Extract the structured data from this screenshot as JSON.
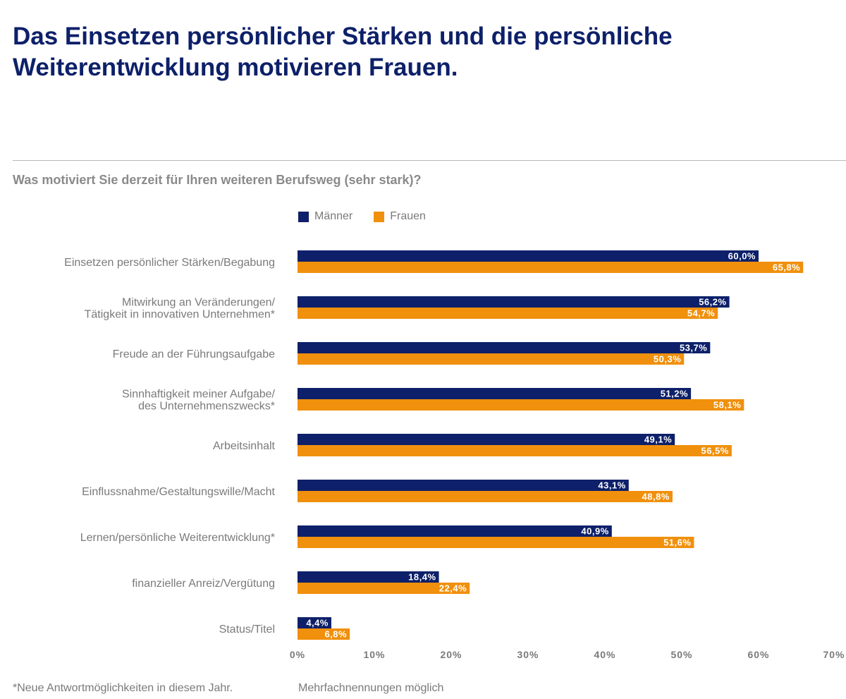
{
  "title": "Das Einsetzen persönlicher Stärken und die persönliche Weiterentwicklung motivieren Frauen.",
  "colors": {
    "maenner": "#0d2069",
    "frauen": "#f0900c",
    "label": "#7a7a7a"
  },
  "chart_data": {
    "type": "bar",
    "orientation": "horizontal",
    "title": "Was motiviert Sie derzeit für Ihren weiteren Berufsweg (sehr stark)?",
    "legend": "top",
    "categories": [
      [
        "Einsetzen persönlicher Stärken/Begabung"
      ],
      [
        "Mitwirkung an Veränderungen/",
        "Tätigkeit in innovativen Unternehmen*"
      ],
      [
        "Freude an der Führungsaufgabe"
      ],
      [
        "Sinnhaftigkeit meiner Aufgabe/",
        "des Unternehmenszwecks*"
      ],
      [
        "Arbeitsinhalt"
      ],
      [
        "Einflussnahme/Gestaltungswille/Macht"
      ],
      [
        "Lernen/persönliche Weiterentwicklung*"
      ],
      [
        "finanzieller Anreiz/Vergütung"
      ],
      [
        "Status/Titel"
      ]
    ],
    "series": [
      {
        "name": "Männer",
        "values": [
          60.0,
          56.2,
          53.7,
          51.2,
          49.1,
          43.1,
          40.9,
          18.4,
          4.4
        ],
        "labels": [
          "60,0%",
          "56,2%",
          "53,7%",
          "51,2%",
          "49,1%",
          "43,1%",
          "40,9%",
          "18,4%",
          "4,4%"
        ]
      },
      {
        "name": "Frauen",
        "values": [
          65.8,
          54.7,
          50.3,
          58.1,
          56.5,
          48.8,
          51.6,
          22.4,
          6.8
        ],
        "labels": [
          "65,8%",
          "54,7%",
          "50,3%",
          "58,1%",
          "56,5%",
          "48,8%",
          "51,6%",
          "22,4%",
          "6,8%"
        ]
      }
    ],
    "xlim": [
      0,
      70
    ],
    "xticks": [
      "0%",
      "10%",
      "20%",
      "30%",
      "40%",
      "50%",
      "60%",
      "70%"
    ],
    "xlabel": "",
    "ylabel": ""
  },
  "footnotes": {
    "left": "*Neue Antwortmöglichkeiten in diesem Jahr.",
    "right": "Mehrfachnennungen möglich"
  }
}
